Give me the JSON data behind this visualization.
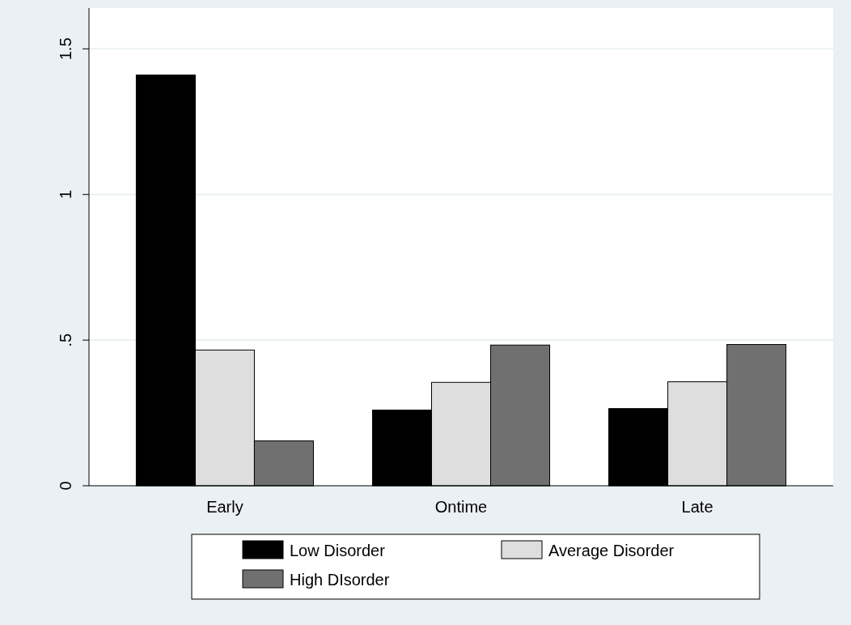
{
  "chart_data": {
    "type": "bar",
    "categories": [
      "Early",
      "Ontime",
      "Late"
    ],
    "series": [
      {
        "name": "Low Disorder",
        "color": "#000000",
        "values": [
          1.41,
          0.26,
          0.265
        ]
      },
      {
        "name": "Average Disorder",
        "color": "#dedede",
        "values": [
          0.466,
          0.355,
          0.357
        ]
      },
      {
        "name": "High DIsorder",
        "color": "#707070",
        "values": [
          0.154,
          0.483,
          0.485
        ]
      }
    ],
    "ylim": [
      0,
      1.64
    ],
    "yticks": [
      0,
      {
        "value": 0.5,
        "label": ".5"
      },
      1,
      1.5
    ],
    "grid": "y",
    "legend": "bottom"
  }
}
